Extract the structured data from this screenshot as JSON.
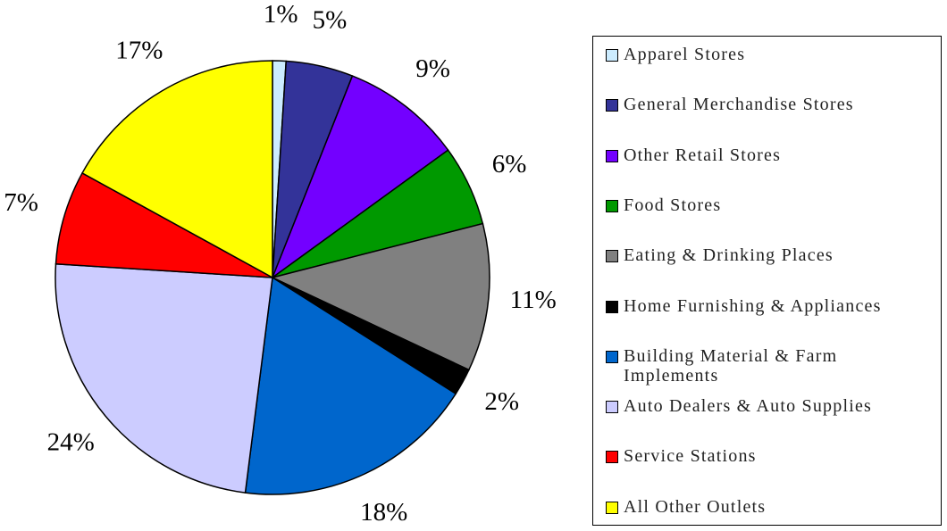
{
  "chart_data": {
    "type": "pie",
    "categories": [
      "Apparel Stores",
      "General Merchandise Stores",
      "Other Retail Stores",
      "Food Stores",
      "Eating & Drinking Places",
      "Home Furnishing & Appliances",
      "Building Material & Farm Implements",
      "Auto Dealers & Auto Supplies",
      "Service Stations",
      "All Other Outlets"
    ],
    "values": [
      1,
      5,
      9,
      6,
      11,
      2,
      18,
      24,
      7,
      17
    ],
    "value_labels": [
      "1%",
      "5%",
      "9%",
      "6%",
      "11%",
      "2%",
      "18%",
      "24%",
      "7%",
      "17%"
    ],
    "colors": [
      "#ccecff",
      "#333399",
      "#7300ff",
      "#009900",
      "#808080",
      "#000000",
      "#0066cc",
      "#ccccff",
      "#ff0000",
      "#ffff00"
    ],
    "legend": "right"
  }
}
